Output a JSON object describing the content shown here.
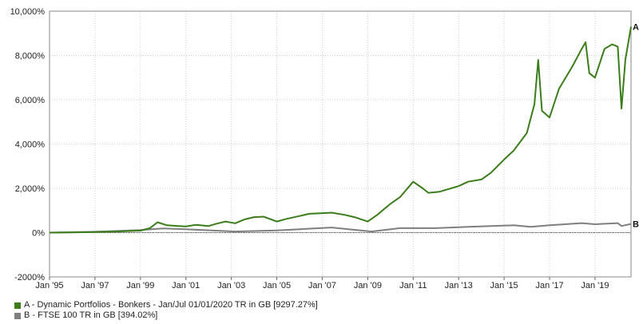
{
  "chart_data": {
    "type": "line",
    "title": "",
    "xlabel": "",
    "ylabel": "",
    "ylim": [
      -2000,
      10000
    ],
    "xlim": [
      "1995-01",
      "2020-08"
    ],
    "yticks": [
      -2000,
      0,
      2000,
      4000,
      6000,
      8000,
      10000
    ],
    "ytick_labels": [
      "-2000%",
      "0%",
      "2,000%",
      "4,000%",
      "6,000%",
      "8,000%",
      "10,000%"
    ],
    "xticks": [
      "1995-01",
      "1997-01",
      "1999-01",
      "2001-01",
      "2003-01",
      "2005-01",
      "2007-01",
      "2009-01",
      "2011-01",
      "2013-01",
      "2015-01",
      "2017-01",
      "2019-01"
    ],
    "xtick_labels": [
      "Jan '95",
      "Jan '97",
      "Jan '99",
      "Jan '01",
      "Jan '03",
      "Jan '05",
      "Jan '07",
      "Jan '09",
      "Jan '11",
      "Jan '13",
      "Jan '15",
      "Jan '17",
      "Jan '19"
    ],
    "grid": true,
    "legend_position": "bottom",
    "series": [
      {
        "name": "A - Dynamic Portfolios - Bonkers - Jan/Jul 01/01/2020 TR in GB [9297.27%]",
        "end_label": "A",
        "color": "#3a7d1a",
        "points": [
          [
            "1995-01",
            0
          ],
          [
            "1996-01",
            10
          ],
          [
            "1997-01",
            25
          ],
          [
            "1998-01",
            50
          ],
          [
            "1999-01",
            90
          ],
          [
            "1999-06",
            200
          ],
          [
            "1999-10",
            470
          ],
          [
            "2000-03",
            330
          ],
          [
            "2000-09",
            300
          ],
          [
            "2001-01",
            280
          ],
          [
            "2001-06",
            350
          ],
          [
            "2002-01",
            300
          ],
          [
            "2002-06",
            420
          ],
          [
            "2002-10",
            500
          ],
          [
            "2003-03",
            420
          ],
          [
            "2003-08",
            600
          ],
          [
            "2004-01",
            700
          ],
          [
            "2004-06",
            720
          ],
          [
            "2005-01",
            500
          ],
          [
            "2005-06",
            620
          ],
          [
            "2006-01",
            750
          ],
          [
            "2006-06",
            850
          ],
          [
            "2007-01",
            880
          ],
          [
            "2007-06",
            900
          ],
          [
            "2008-01",
            800
          ],
          [
            "2008-06",
            700
          ],
          [
            "2009-01",
            500
          ],
          [
            "2009-06",
            800
          ],
          [
            "2010-01",
            1300
          ],
          [
            "2010-06",
            1600
          ],
          [
            "2011-01",
            2300
          ],
          [
            "2011-06",
            2000
          ],
          [
            "2011-09",
            1800
          ],
          [
            "2012-03",
            1850
          ],
          [
            "2013-01",
            2100
          ],
          [
            "2013-06",
            2300
          ],
          [
            "2014-01",
            2400
          ],
          [
            "2014-06",
            2700
          ],
          [
            "2015-01",
            3300
          ],
          [
            "2015-06",
            3700
          ],
          [
            "2016-01",
            4500
          ],
          [
            "2016-05",
            5800
          ],
          [
            "2016-07",
            7800
          ],
          [
            "2016-09",
            5500
          ],
          [
            "2017-01",
            5200
          ],
          [
            "2017-06",
            6500
          ],
          [
            "2018-01",
            7500
          ],
          [
            "2018-06",
            8300
          ],
          [
            "2018-08",
            8600
          ],
          [
            "2018-10",
            7200
          ],
          [
            "2019-01",
            7000
          ],
          [
            "2019-06",
            8300
          ],
          [
            "2019-10",
            8500
          ],
          [
            "2020-01",
            8400
          ],
          [
            "2020-03",
            5600
          ],
          [
            "2020-05",
            7800
          ],
          [
            "2020-08",
            9297.27
          ]
        ]
      },
      {
        "name": "B - FTSE 100 TR in GB [394.02%]",
        "end_label": "B",
        "color": "#7f7f7f",
        "points": [
          [
            "1995-01",
            0
          ],
          [
            "1997-01",
            40
          ],
          [
            "1999-01",
            120
          ],
          [
            "2000-01",
            190
          ],
          [
            "2001-01",
            150
          ],
          [
            "2003-03",
            50
          ],
          [
            "2005-01",
            100
          ],
          [
            "2007-06",
            230
          ],
          [
            "2009-03",
            50
          ],
          [
            "2010-06",
            200
          ],
          [
            "2012-01",
            200
          ],
          [
            "2013-06",
            260
          ],
          [
            "2015-06",
            330
          ],
          [
            "2016-03",
            260
          ],
          [
            "2017-01",
            330
          ],
          [
            "2018-06",
            430
          ],
          [
            "2019-01",
            380
          ],
          [
            "2020-01",
            430
          ],
          [
            "2020-03",
            300
          ],
          [
            "2020-08",
            394.02
          ]
        ]
      }
    ]
  }
}
